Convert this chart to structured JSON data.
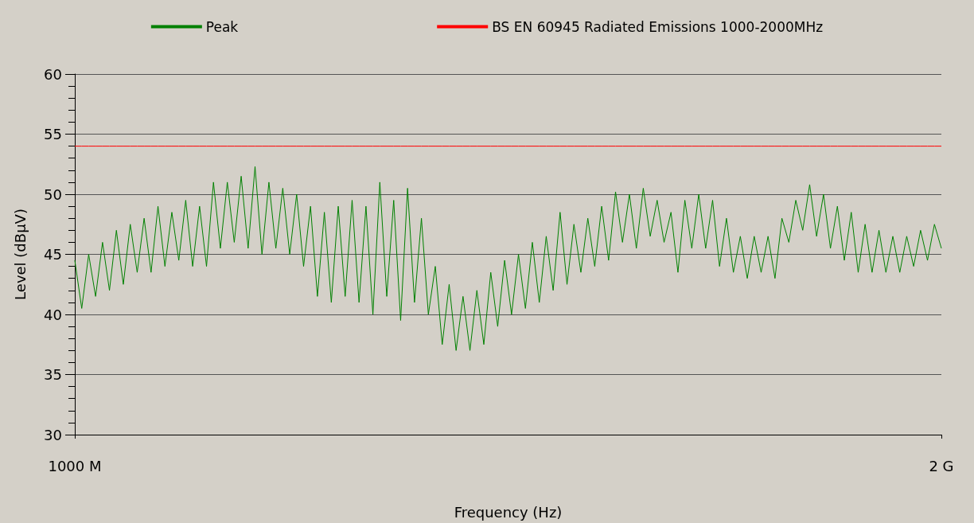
{
  "chart_data": {
    "type": "line",
    "xlabel": "Frequency (Hz)",
    "ylabel": "Level (dBµV)",
    "categories": [
      "1000 M",
      null,
      null,
      null,
      null,
      null,
      null,
      null,
      null,
      null,
      null,
      null,
      null,
      null,
      null,
      null,
      null,
      null,
      null,
      null,
      null,
      null,
      null,
      null,
      null,
      null,
      null,
      null,
      null,
      null,
      null,
      null,
      null,
      null,
      null,
      null,
      null,
      null,
      null,
      null,
      null,
      null,
      null,
      null,
      null,
      null,
      null,
      null,
      null,
      null,
      null,
      null,
      null,
      null,
      null,
      null,
      null,
      null,
      null,
      null,
      null,
      null,
      null,
      null,
      null,
      null,
      null,
      null,
      null,
      null,
      null,
      null,
      null,
      null,
      null,
      null,
      null,
      null,
      null,
      null,
      null,
      null,
      null,
      null,
      null,
      null,
      null,
      null,
      null,
      null,
      null,
      null,
      null,
      null,
      null,
      null,
      null,
      null,
      null,
      null,
      null,
      null,
      null,
      null,
      null,
      null,
      null,
      null,
      null,
      null,
      null,
      null,
      null,
      null,
      null,
      null,
      null,
      null,
      null,
      null,
      null,
      null,
      null,
      null,
      null,
      "2 G"
    ],
    "series": [
      {
        "name": "Peak",
        "color": "#008000",
        "values": [
          44.5,
          40.5,
          45,
          41.5,
          46,
          42,
          47,
          42.5,
          47.5,
          43.5,
          48,
          43.5,
          49,
          44,
          48.5,
          44.5,
          49.5,
          44,
          49,
          44,
          51,
          45.5,
          51,
          46,
          51.5,
          45.5,
          52.3,
          45,
          51,
          45.5,
          50.5,
          45,
          50,
          44,
          49,
          41.5,
          48.5,
          41,
          49,
          41.5,
          49.5,
          41,
          49,
          40,
          51,
          41.5,
          49.5,
          39.5,
          50.5,
          41,
          48,
          40,
          44,
          37.5,
          42.5,
          37,
          41.5,
          37,
          42,
          37.5,
          43.5,
          39,
          44.5,
          40,
          45,
          40.5,
          46,
          41,
          46.5,
          42,
          48.5,
          42.5,
          47.5,
          43.5,
          48,
          44,
          49,
          44.5,
          50.2,
          46,
          50,
          45.5,
          50.5,
          46.5,
          49.5,
          46,
          48.5,
          43.5,
          49.5,
          45.5,
          50,
          45.5,
          49.5,
          44,
          48,
          43.5,
          46.5,
          43,
          46.5,
          43.5,
          46.5,
          43,
          48,
          46,
          49.5,
          47,
          50.8,
          46.5,
          50,
          45.5,
          49,
          44.5,
          48.5,
          43.5,
          47.5,
          43.5,
          47,
          43.5,
          46.5,
          43.5,
          46.5,
          44,
          47,
          44.5,
          47.5,
          45.5
        ]
      },
      {
        "name": "BS EN 60945 Radiated Emissions 1000-2000MHz",
        "color": "#ff0000",
        "values": [
          54,
          54,
          54,
          54,
          54,
          54,
          54,
          54,
          54,
          54,
          54,
          54,
          54,
          54,
          54,
          54,
          54,
          54,
          54,
          54,
          54,
          54,
          54,
          54,
          54,
          54,
          54,
          54,
          54,
          54,
          54,
          54,
          54,
          54,
          54,
          54,
          54,
          54,
          54,
          54,
          54,
          54,
          54,
          54,
          54,
          54,
          54,
          54,
          54,
          54,
          54,
          54,
          54,
          54,
          54,
          54,
          54,
          54,
          54,
          54,
          54,
          54,
          54,
          54,
          54,
          54,
          54,
          54,
          54,
          54,
          54,
          54,
          54,
          54,
          54,
          54,
          54,
          54,
          54,
          54,
          54,
          54,
          54,
          54,
          54,
          54,
          54,
          54,
          54,
          54,
          54,
          54,
          54,
          54,
          54,
          54,
          54,
          54,
          54,
          54,
          54,
          54,
          54,
          54,
          54,
          54,
          54,
          54,
          54,
          54,
          54,
          54,
          54,
          54,
          54,
          54,
          54,
          54,
          54,
          54,
          54,
          54,
          54,
          54,
          54,
          54
        ]
      }
    ],
    "ylim": [
      30,
      60
    ],
    "yticks": [
      30,
      35,
      40,
      45,
      50,
      55,
      60
    ],
    "grid": "y",
    "legend": "top",
    "marker": "none",
    "line_style": "solid"
  }
}
